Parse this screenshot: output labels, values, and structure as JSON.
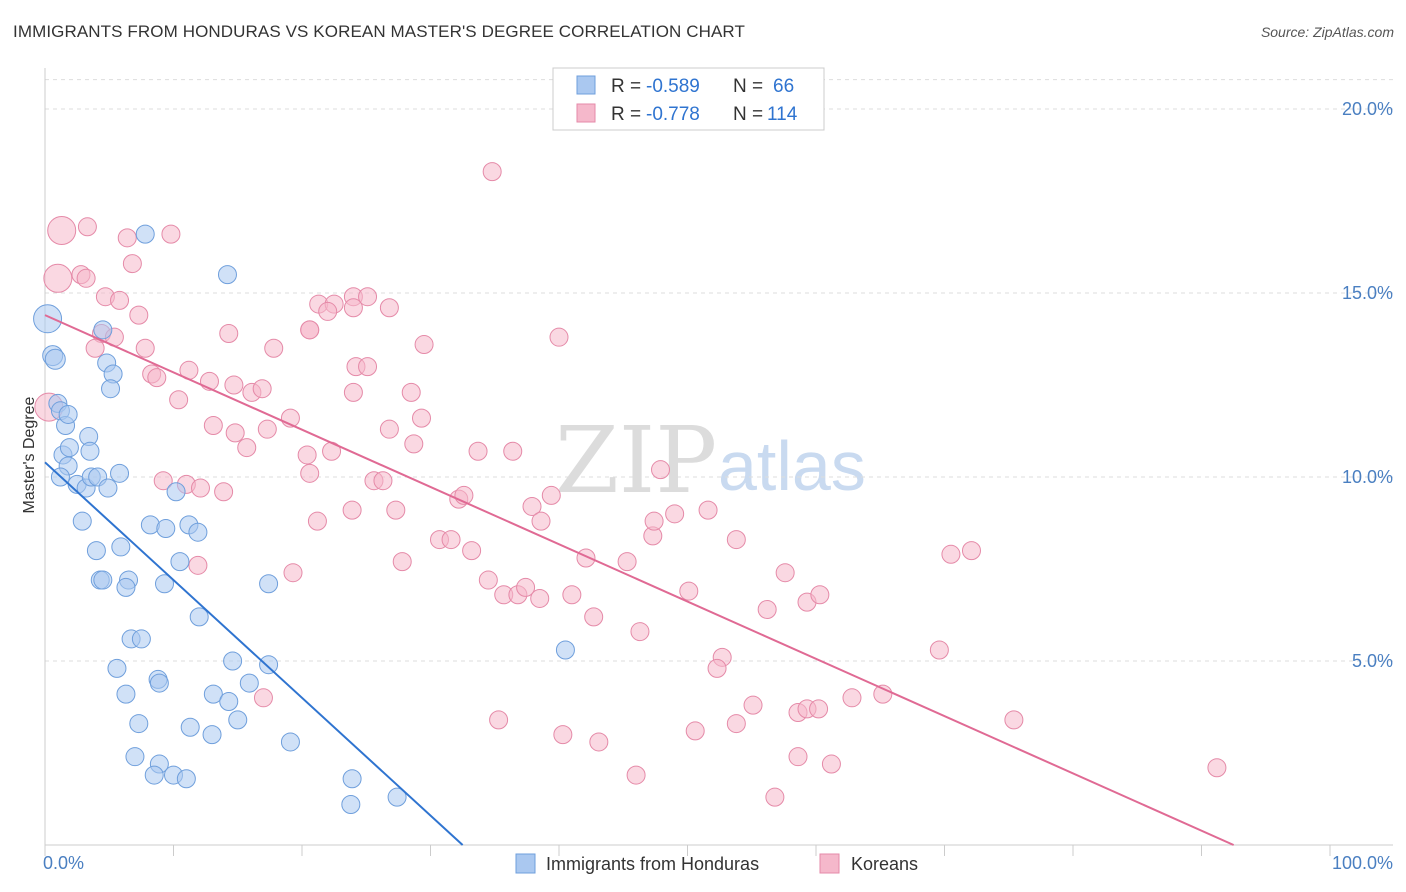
{
  "title": "IMMIGRANTS FROM HONDURAS VS KOREAN MASTER'S DEGREE CORRELATION CHART",
  "source": "Source: ZipAtlas.com",
  "watermark": {
    "part1": "ZIP",
    "part2": "atlas"
  },
  "colors": {
    "blue_fill": "#aac8f0",
    "blue_stroke": "#6f9fdc",
    "blue_line": "#2f74d0",
    "pink_fill": "#f5b8cb",
    "pink_stroke": "#e58aa8",
    "pink_line": "#e06a94",
    "tick_text": "#4a7fc1",
    "grid": "#dddddd",
    "axis": "#cccccc"
  },
  "legend": {
    "rows": [
      {
        "r_label": "R =",
        "r_value": "-0.589",
        "n_label": "N =",
        "n_value": "66",
        "color": "blue"
      },
      {
        "r_label": "R =",
        "r_value": "-0.778",
        "n_label": "N =",
        "n_value": "114",
        "color": "pink"
      }
    ]
  },
  "chart_data": {
    "type": "scatter",
    "title": "IMMIGRANTS FROM HONDURAS VS KOREAN MASTER'S DEGREE CORRELATION CHART",
    "xlabel": "",
    "ylabel": "Master's Degree",
    "xlim": [
      0,
      100
    ],
    "ylim": [
      0,
      20.8
    ],
    "x_tick_labels": [
      "0.0%",
      "100.0%"
    ],
    "y_ticks": [
      5,
      10,
      15,
      20
    ],
    "y_tick_labels": [
      "5.0%",
      "10.0%",
      "15.0%",
      "20.0%"
    ],
    "grid": "horizontal dashed",
    "legend_position": "top-center",
    "series": [
      {
        "name": "Immigrants from Honduras",
        "color": "blue",
        "r": -0.589,
        "n": 66,
        "trend": {
          "x": [
            0,
            32.5
          ],
          "y": [
            10.4,
            0
          ]
        },
        "points": [
          [
            0.2,
            14.3,
            14
          ],
          [
            0.6,
            13.3,
            10
          ],
          [
            0.8,
            13.2,
            10
          ],
          [
            1.0,
            12.0,
            9
          ],
          [
            1.2,
            11.8,
            9
          ],
          [
            1.6,
            11.4,
            9
          ],
          [
            1.8,
            11.7,
            9
          ],
          [
            4.5,
            14.0,
            9
          ],
          [
            7.8,
            16.6,
            9
          ],
          [
            14.2,
            15.5,
            9
          ],
          [
            1.4,
            10.6,
            9
          ],
          [
            1.8,
            10.3,
            9
          ],
          [
            1.2,
            10.0,
            9
          ],
          [
            3.4,
            11.1,
            9
          ],
          [
            3.5,
            10.7,
            9
          ],
          [
            2.5,
            9.8,
            9
          ],
          [
            3.2,
            9.7,
            9
          ],
          [
            3.6,
            10.0,
            9
          ],
          [
            4.1,
            10.0,
            9
          ],
          [
            4.9,
            9.7,
            9
          ],
          [
            5.8,
            10.1,
            9
          ],
          [
            4.8,
            13.1,
            9
          ],
          [
            5.3,
            12.8,
            9
          ],
          [
            5.1,
            12.4,
            9
          ],
          [
            2.9,
            8.8,
            9
          ],
          [
            4.0,
            8.0,
            9
          ],
          [
            5.9,
            8.1,
            9
          ],
          [
            8.2,
            8.7,
            9
          ],
          [
            9.4,
            8.6,
            9
          ],
          [
            10.2,
            9.6,
            9
          ],
          [
            11.2,
            8.7,
            9
          ],
          [
            11.9,
            8.5,
            9
          ],
          [
            10.5,
            7.7,
            9
          ],
          [
            4.3,
            7.2,
            9
          ],
          [
            4.5,
            7.2,
            9
          ],
          [
            6.5,
            7.2,
            9
          ],
          [
            6.3,
            7.0,
            9
          ],
          [
            9.3,
            7.1,
            9
          ],
          [
            12.0,
            6.2,
            9
          ],
          [
            17.4,
            7.1,
            9
          ],
          [
            6.7,
            5.6,
            9
          ],
          [
            7.5,
            5.6,
            9
          ],
          [
            8.8,
            4.5,
            9
          ],
          [
            8.9,
            4.4,
            9
          ],
          [
            5.6,
            4.8,
            9
          ],
          [
            6.3,
            4.1,
            9
          ],
          [
            14.6,
            5.0,
            9
          ],
          [
            17.4,
            4.9,
            9
          ],
          [
            13.1,
            4.1,
            9
          ],
          [
            14.3,
            3.9,
            9
          ],
          [
            15.9,
            4.4,
            9
          ],
          [
            7.3,
            3.3,
            9
          ],
          [
            11.3,
            3.2,
            9
          ],
          [
            13.0,
            3.0,
            9
          ],
          [
            15.0,
            3.4,
            9
          ],
          [
            19.1,
            2.8,
            9
          ],
          [
            7.0,
            2.4,
            9
          ],
          [
            8.9,
            2.2,
            9
          ],
          [
            8.5,
            1.9,
            9
          ],
          [
            10.0,
            1.9,
            9
          ],
          [
            11.0,
            1.8,
            9
          ],
          [
            23.9,
            1.8,
            9
          ],
          [
            27.4,
            1.3,
            9
          ],
          [
            23.8,
            1.1,
            9
          ],
          [
            40.5,
            5.3,
            9
          ],
          [
            1.9,
            10.8,
            9
          ]
        ]
      },
      {
        "name": "Koreans",
        "color": "pink",
        "r": -0.778,
        "n": 114,
        "trend": {
          "x": [
            0,
            92.5
          ],
          "y": [
            14.4,
            0
          ]
        },
        "points": [
          [
            1.3,
            16.7,
            14
          ],
          [
            3.3,
            16.8,
            9
          ],
          [
            6.4,
            16.5,
            9
          ],
          [
            9.8,
            16.6,
            9
          ],
          [
            1.0,
            15.4,
            14
          ],
          [
            2.8,
            15.5,
            9
          ],
          [
            3.2,
            15.4,
            9
          ],
          [
            6.8,
            15.8,
            9
          ],
          [
            4.7,
            14.9,
            9
          ],
          [
            5.8,
            14.8,
            9
          ],
          [
            7.3,
            14.4,
            9
          ],
          [
            0.3,
            11.9,
            14
          ],
          [
            4.4,
            13.9,
            9
          ],
          [
            5.4,
            13.8,
            9
          ],
          [
            3.9,
            13.5,
            9
          ],
          [
            7.8,
            13.5,
            9
          ],
          [
            8.3,
            12.8,
            9
          ],
          [
            8.7,
            12.7,
            9
          ],
          [
            11.2,
            12.9,
            9
          ],
          [
            12.8,
            12.6,
            9
          ],
          [
            10.4,
            12.1,
            9
          ],
          [
            14.3,
            13.9,
            9
          ],
          [
            17.8,
            13.5,
            9
          ],
          [
            20.6,
            14.0,
            9
          ],
          [
            20.6,
            14.0,
            9
          ],
          [
            24.2,
            13.0,
            9
          ],
          [
            21.3,
            14.7,
            9
          ],
          [
            24.0,
            14.9,
            9
          ],
          [
            22.5,
            14.7,
            9
          ],
          [
            22.0,
            14.5,
            9
          ],
          [
            24.0,
            14.6,
            9
          ],
          [
            26.8,
            14.6,
            9
          ],
          [
            25.1,
            14.9,
            9
          ],
          [
            24.0,
            12.3,
            9
          ],
          [
            25.1,
            13.0,
            9
          ],
          [
            14.7,
            12.5,
            9
          ],
          [
            16.1,
            12.3,
            9
          ],
          [
            16.9,
            12.4,
            9
          ],
          [
            13.1,
            11.4,
            9
          ],
          [
            14.8,
            11.2,
            9
          ],
          [
            15.7,
            10.8,
            9
          ],
          [
            17.3,
            11.3,
            9
          ],
          [
            19.1,
            11.6,
            9
          ],
          [
            20.4,
            10.6,
            9
          ],
          [
            22.3,
            10.7,
            9
          ],
          [
            20.6,
            10.1,
            9
          ],
          [
            26.8,
            11.3,
            9
          ],
          [
            28.7,
            10.9,
            9
          ],
          [
            29.3,
            11.6,
            9
          ],
          [
            28.5,
            12.3,
            9
          ],
          [
            29.5,
            13.6,
            9
          ],
          [
            33.7,
            10.7,
            9
          ],
          [
            36.4,
            10.7,
            9
          ],
          [
            40.0,
            13.8,
            9
          ],
          [
            34.8,
            18.3,
            9
          ],
          [
            9.2,
            9.9,
            9
          ],
          [
            11.0,
            9.8,
            9
          ],
          [
            12.1,
            9.7,
            9
          ],
          [
            13.9,
            9.6,
            9
          ],
          [
            11.9,
            7.6,
            9
          ],
          [
            19.3,
            7.4,
            9
          ],
          [
            21.2,
            8.8,
            9
          ],
          [
            23.9,
            9.1,
            9
          ],
          [
            25.6,
            9.9,
            9
          ],
          [
            26.3,
            9.9,
            9
          ],
          [
            27.3,
            9.1,
            9
          ],
          [
            27.8,
            7.7,
            9
          ],
          [
            30.7,
            8.3,
            9
          ],
          [
            31.6,
            8.3,
            9
          ],
          [
            32.2,
            9.4,
            9
          ],
          [
            32.6,
            9.5,
            9
          ],
          [
            33.2,
            8.0,
            9
          ],
          [
            34.5,
            7.2,
            9
          ],
          [
            35.7,
            6.8,
            9
          ],
          [
            36.8,
            6.8,
            9
          ],
          [
            37.4,
            7.0,
            9
          ],
          [
            37.9,
            9.2,
            9
          ],
          [
            38.6,
            8.8,
            9
          ],
          [
            38.5,
            6.7,
            9
          ],
          [
            39.4,
            9.5,
            9
          ],
          [
            41.0,
            6.8,
            9
          ],
          [
            42.1,
            7.8,
            9
          ],
          [
            42.7,
            6.2,
            9
          ],
          [
            45.3,
            7.7,
            9
          ],
          [
            46.3,
            5.8,
            9
          ],
          [
            47.9,
            10.2,
            9
          ],
          [
            47.3,
            8.4,
            9
          ],
          [
            47.4,
            8.8,
            9
          ],
          [
            49.0,
            9.0,
            9
          ],
          [
            50.1,
            6.9,
            9
          ],
          [
            51.6,
            9.1,
            9
          ],
          [
            52.7,
            5.1,
            9
          ],
          [
            52.3,
            4.8,
            9
          ],
          [
            53.8,
            8.3,
            9
          ],
          [
            56.2,
            6.4,
            9
          ],
          [
            57.6,
            7.4,
            9
          ],
          [
            59.3,
            6.6,
            9
          ],
          [
            60.3,
            6.8,
            9
          ],
          [
            55.1,
            3.8,
            9
          ],
          [
            58.6,
            3.6,
            9
          ],
          [
            59.3,
            3.7,
            9
          ],
          [
            60.2,
            3.7,
            9
          ],
          [
            62.8,
            4.0,
            9
          ],
          [
            65.2,
            4.1,
            9
          ],
          [
            70.5,
            7.9,
            9
          ],
          [
            72.1,
            8.0,
            9
          ],
          [
            69.6,
            5.3,
            9
          ],
          [
            75.4,
            3.4,
            9
          ],
          [
            91.2,
            2.1,
            9
          ],
          [
            35.3,
            3.4,
            9
          ],
          [
            40.3,
            3.0,
            9
          ],
          [
            43.1,
            2.8,
            9
          ],
          [
            46.0,
            1.9,
            9
          ],
          [
            50.6,
            3.1,
            9
          ],
          [
            53.8,
            3.3,
            9
          ],
          [
            56.8,
            1.3,
            9
          ],
          [
            58.6,
            2.4,
            9
          ],
          [
            61.2,
            2.2,
            9
          ],
          [
            17.0,
            4.0,
            9
          ]
        ]
      }
    ]
  },
  "bottom_legend": {
    "items": [
      {
        "label": "Immigrants from Honduras",
        "color": "blue"
      },
      {
        "label": "Koreans",
        "color": "pink"
      }
    ]
  }
}
